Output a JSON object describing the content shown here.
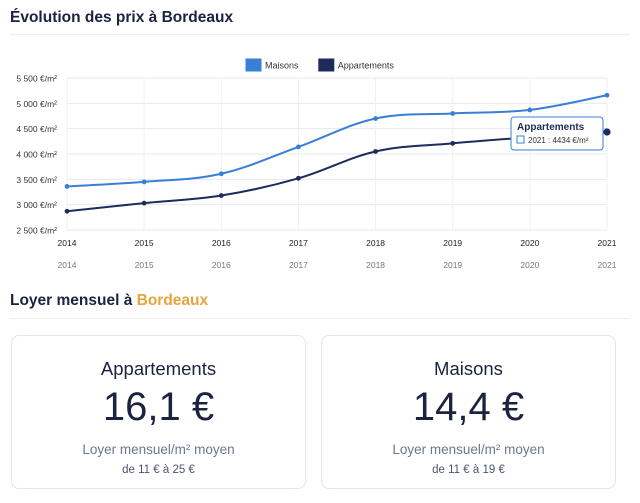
{
  "prices": {
    "title": "Évolution des prix à Bordeaux"
  },
  "chart_data": {
    "type": "line",
    "x": [
      2014,
      2015,
      2016,
      2017,
      2018,
      2019,
      2020,
      2021
    ],
    "series": [
      {
        "name": "Maisons",
        "color": "#3a7fd6",
        "values": [
          3360,
          3450,
          3610,
          4140,
          4700,
          4800,
          4870,
          5160
        ]
      },
      {
        "name": "Appartements",
        "color": "#1c2d5c",
        "values": [
          2870,
          3030,
          3180,
          3520,
          4050,
          4210,
          4330,
          4434
        ]
      }
    ],
    "ylim": [
      2500,
      5500
    ],
    "y_ticks": [
      "2 500 €/m²",
      "3 000 €/m²",
      "3 500 €/m²",
      "4 000 €/m²",
      "4 500 €/m²",
      "5 000 €/m²",
      "5 500 €/m²"
    ],
    "grid": true,
    "legend": "top-center",
    "tooltip": {
      "title": "Appartements",
      "text": "2021 : 4434 €/m²"
    }
  },
  "rent": {
    "title_prefix": "Loyer mensuel à ",
    "city": "Bordeaux",
    "cards": [
      {
        "type": "Appartements",
        "value": "16,1 €",
        "label": "Loyer mensuel/m² moyen",
        "range": "de 11 € à 25 €"
      },
      {
        "type": "Maisons",
        "value": "14,4 €",
        "label": "Loyer mensuel/m² moyen",
        "range": "de 11 € à 19 €"
      }
    ]
  }
}
